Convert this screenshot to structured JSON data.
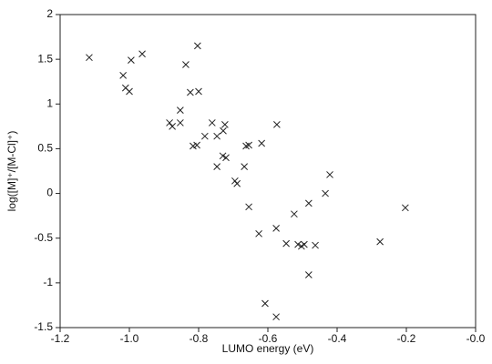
{
  "chart_data": {
    "type": "scatter",
    "x_label": "LUMO energy (eV)",
    "y_label": "log([M]⁺/[M-Cl]⁺)",
    "xlim": [
      -1.2,
      0.0
    ],
    "ylim": [
      -1.5,
      2
    ],
    "xticks": [
      -1.2,
      {
        "value": -1.0,
        "label": "-1.0"
      },
      -0.8,
      -0.6,
      -0.4,
      -0.2,
      {
        "value": 0,
        "label": "-0.0"
      }
    ],
    "yticks": [
      -1.5,
      -1,
      -0.5,
      0,
      0.5,
      1,
      1.5,
      2
    ],
    "color": "#222222",
    "x": [
      -1.116,
      -1.018,
      -1.011,
      -1.0,
      -0.995,
      -0.963,
      -0.803,
      -0.837,
      -0.824,
      -0.8,
      -0.884,
      -0.876,
      -0.853,
      -0.853,
      -0.816,
      -0.805,
      -0.782,
      -0.761,
      -0.747,
      -0.724,
      -0.729,
      -0.721,
      -0.747,
      -0.73,
      -0.695,
      -0.689,
      -0.663,
      -0.655,
      -0.668,
      -0.655,
      -0.618,
      -0.574,
      -0.626,
      -0.576,
      -0.547,
      -0.524,
      -0.513,
      -0.503,
      -0.495,
      -0.482,
      -0.482,
      -0.463,
      -0.434,
      -0.421,
      -0.608,
      -0.576,
      -0.276,
      -0.203
    ],
    "values": [
      1.52,
      1.32,
      1.18,
      1.14,
      1.49,
      1.56,
      1.65,
      1.44,
      1.13,
      1.14,
      0.79,
      0.75,
      0.93,
      0.79,
      0.53,
      0.54,
      0.64,
      0.79,
      0.64,
      0.77,
      0.7,
      0.4,
      0.3,
      0.42,
      0.14,
      0.11,
      0.53,
      0.54,
      0.3,
      -0.15,
      0.56,
      0.77,
      -0.45,
      -0.39,
      -0.56,
      -0.23,
      -0.57,
      -0.59,
      -0.57,
      -0.11,
      -0.91,
      -0.58,
      0.0,
      0.21,
      -1.23,
      -1.38,
      -0.54,
      -0.16
    ]
  }
}
